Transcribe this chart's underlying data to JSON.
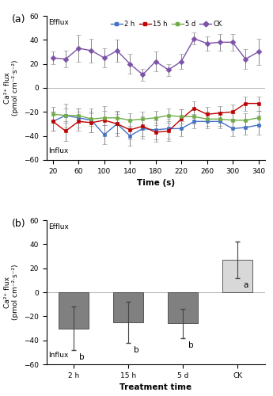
{
  "time_points": [
    20,
    40,
    60,
    80,
    100,
    120,
    140,
    160,
    180,
    200,
    220,
    240,
    260,
    280,
    300,
    320,
    340
  ],
  "ck_values": [
    25,
    24,
    33,
    31,
    25,
    31,
    20,
    11,
    22,
    15,
    22,
    41,
    37,
    38,
    38,
    24,
    30
  ],
  "ck_err": [
    5,
    7,
    11,
    10,
    8,
    9,
    8,
    5,
    8,
    5,
    6,
    5,
    6,
    7,
    7,
    8,
    11
  ],
  "h2_values": [
    -28,
    -23,
    -25,
    -27,
    -39,
    -30,
    -40,
    -34,
    -35,
    -34,
    -34,
    -28,
    -28,
    -28,
    -34,
    -33,
    -31
  ],
  "h2_err": [
    8,
    10,
    8,
    10,
    8,
    10,
    8,
    8,
    8,
    8,
    6,
    6,
    6,
    6,
    6,
    6,
    8
  ],
  "h15_values": [
    -28,
    -36,
    -28,
    -29,
    -27,
    -30,
    -35,
    -32,
    -37,
    -36,
    -26,
    -17,
    -22,
    -21,
    -20,
    -13,
    -13
  ],
  "h15_err": [
    8,
    8,
    8,
    8,
    12,
    8,
    8,
    8,
    8,
    8,
    8,
    6,
    6,
    6,
    6,
    6,
    6
  ],
  "d5_values": [
    -22,
    -23,
    -23,
    -26,
    -25,
    -25,
    -27,
    -26,
    -25,
    -23,
    -24,
    -24,
    -26,
    -26,
    -27,
    -27,
    -25
  ],
  "d5_err": [
    6,
    6,
    6,
    6,
    6,
    6,
    6,
    6,
    6,
    6,
    6,
    6,
    6,
    6,
    6,
    6,
    6
  ],
  "color_ck": "#7B52A8",
  "color_2h": "#4472C4",
  "color_15h": "#C00000",
  "color_5d": "#70AD47",
  "bar_categories": [
    "2 h",
    "15 h",
    "5 d",
    "CK"
  ],
  "bar_values": [
    -30,
    -25,
    -26,
    27
  ],
  "bar_err": [
    18,
    17,
    12,
    15
  ],
  "bar_colors": [
    "#808080",
    "#808080",
    "#808080",
    "#D8D8D8"
  ],
  "bar_letters": [
    "b",
    "b",
    "b",
    "a"
  ],
  "ylim_a": [
    -60,
    60
  ],
  "ylim_b": [
    -60,
    60
  ],
  "yticks_a": [
    -60,
    -40,
    -20,
    0,
    20,
    40,
    60
  ],
  "yticks_b": [
    -60,
    -40,
    -20,
    0,
    20,
    40,
    60
  ],
  "xlabel_a": "Time (s)",
  "xlabel_b": "Treatment time",
  "ylabel": "Ca2+ flux (pmol cm-2·s-2)",
  "efflux_label": "Efflux",
  "influx_label": "Influx",
  "xticks_a": [
    20,
    60,
    100,
    140,
    180,
    220,
    260,
    300,
    340
  ],
  "marker_size": 3.5,
  "linewidth": 1.0,
  "capsize": 2,
  "elinewidth": 0.7,
  "ecolor": "#888888"
}
